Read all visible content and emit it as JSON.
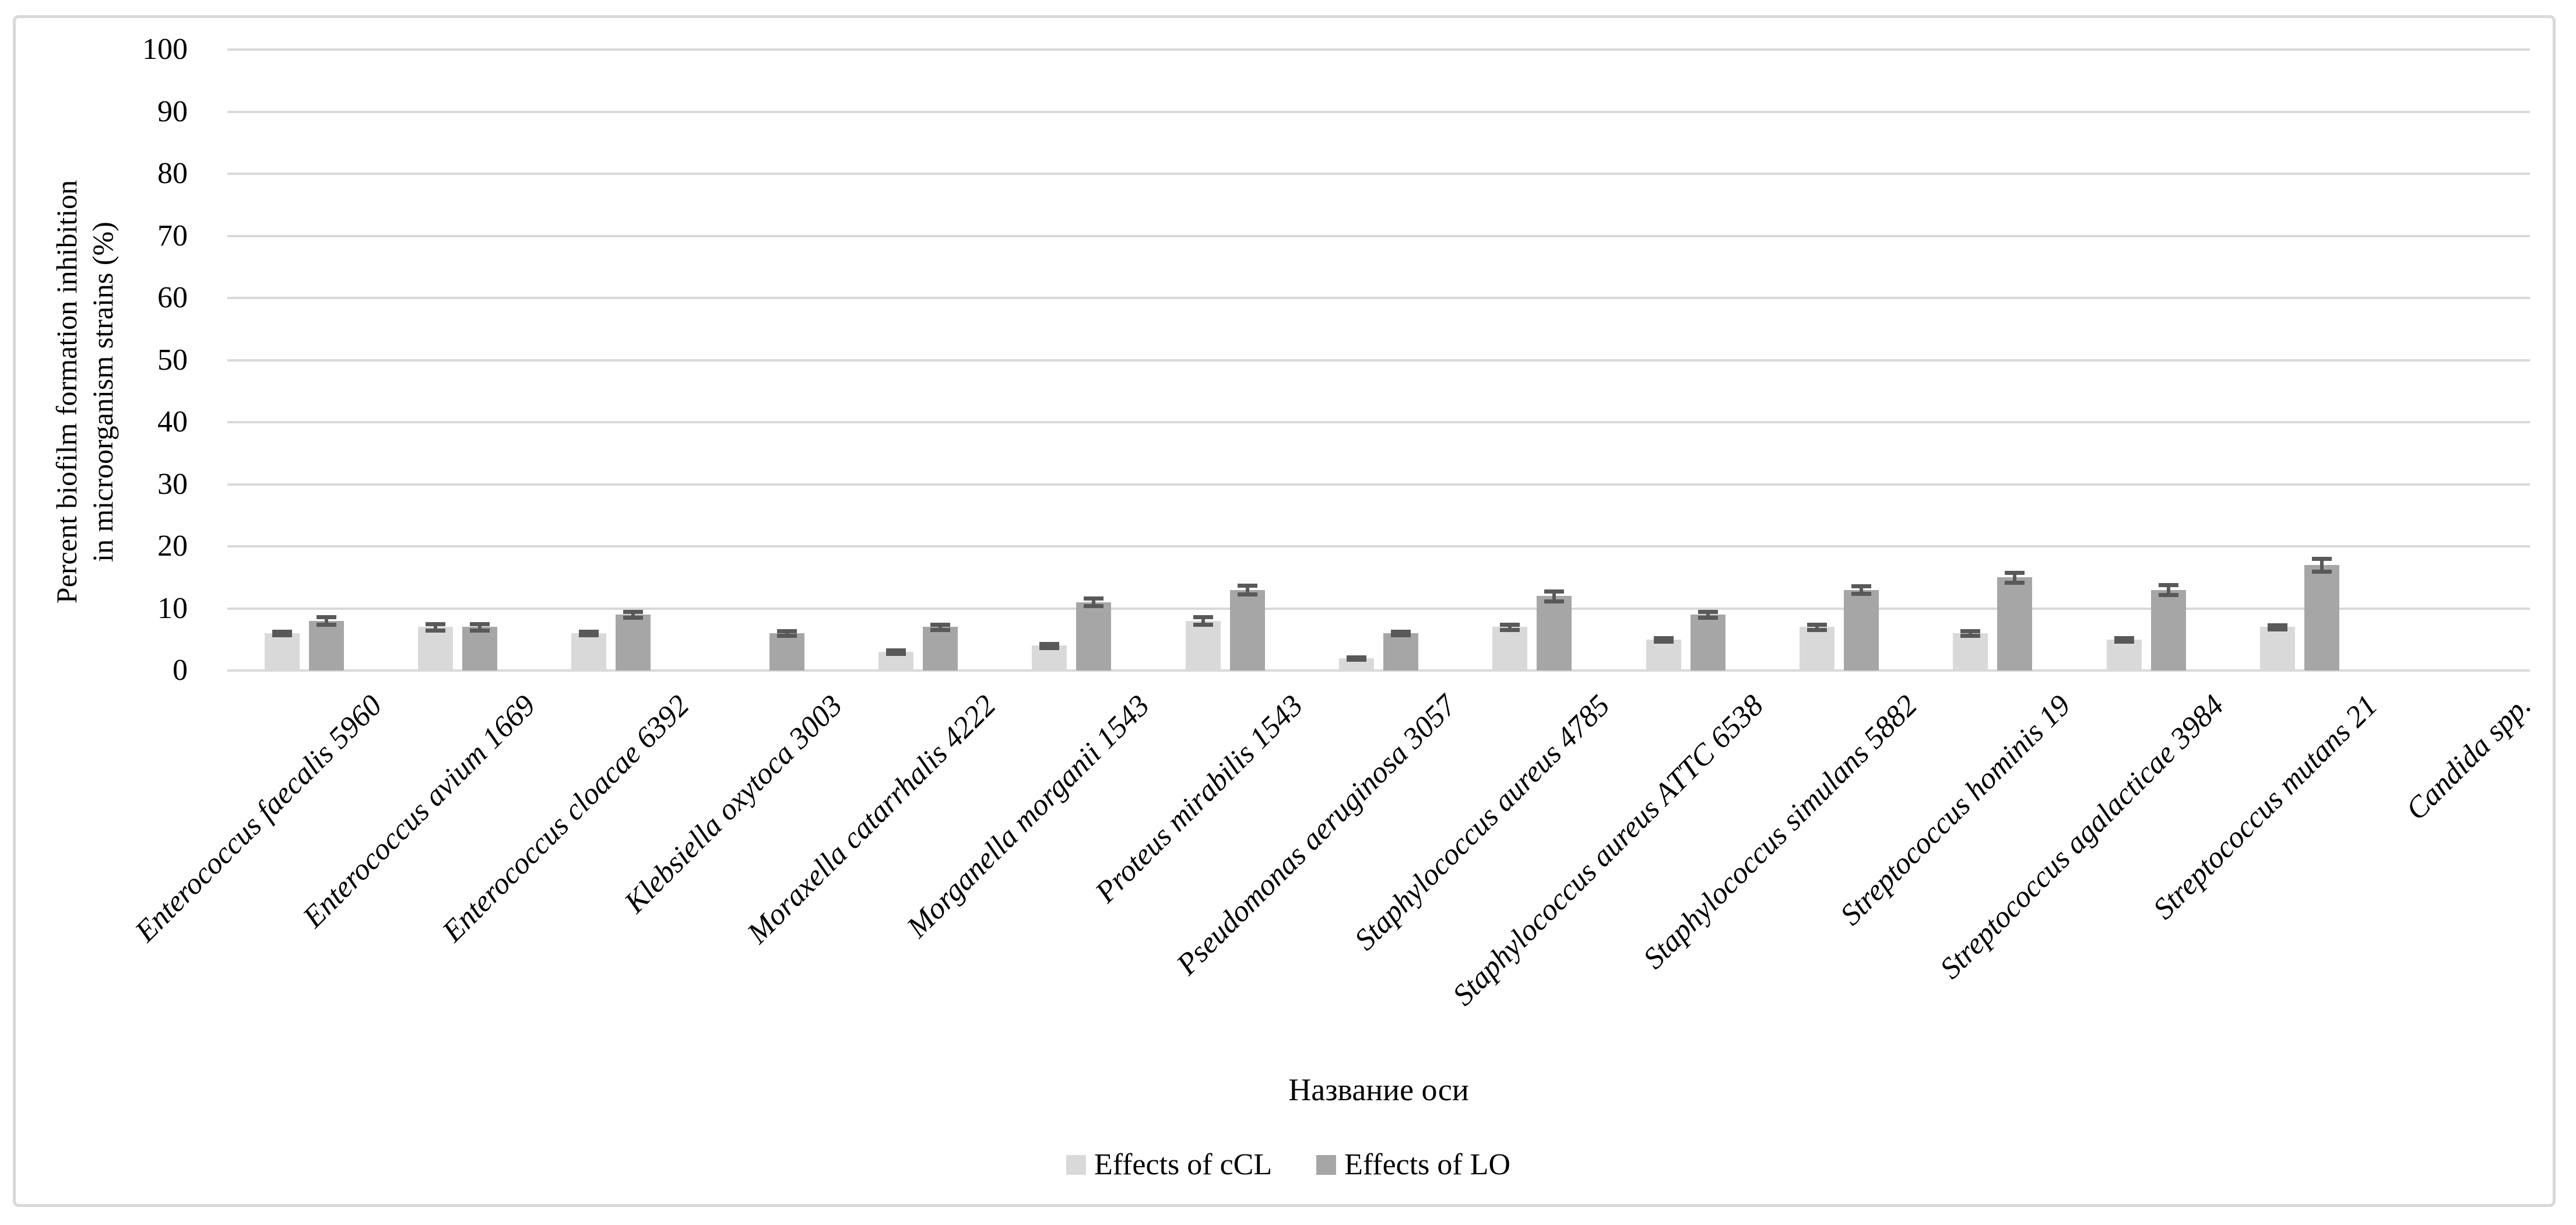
{
  "chart_data": {
    "type": "bar",
    "title": "",
    "y_axis": {
      "label_line1": "Percent biofilm formation inhibition",
      "label_line2": "in microorganism strains (%)",
      "min": 0,
      "max": 100,
      "tick_step": 10,
      "tick_labels": [
        "0",
        "10",
        "20",
        "30",
        "40",
        "50",
        "60",
        "70",
        "80",
        "90",
        "100"
      ]
    },
    "x_axis": {
      "label": "Название оси"
    },
    "categories": [
      "Enterococcus  faecalis 5960",
      "Enterococcus avium 1669",
      "Enterococcus cloacae 6392",
      "Klebsiella oxytoca 3003",
      "Moraxella catarrhalis 4222",
      "Morganella morganii 1543",
      "Proteus mirabilis 1543",
      "Pseudomonas aeruginosa 3057",
      "Staphylococcus aureus 4785",
      "Staphylococcus aureus ATTC 6538",
      "Staphylococcus simulans 5882",
      "Streptococcus hominis 19",
      "Streptococcus agalacticae 3984",
      "Streptococcus mutans 21",
      "Candida spp."
    ],
    "series": [
      {
        "name": "Effects of cCL",
        "color": "#d9d9d9",
        "values": [
          6,
          7,
          6,
          0,
          3,
          4,
          8,
          2,
          7,
          5,
          7,
          6,
          5,
          7,
          0
        ],
        "errors": [
          0.3,
          0.5,
          0.3,
          0,
          0.3,
          0.3,
          0.6,
          0.2,
          0.4,
          0.3,
          0.4,
          0.4,
          0.3,
          0.3,
          0
        ]
      },
      {
        "name": "Effects of LO",
        "color": "#a6a6a6",
        "values": [
          8,
          7,
          9,
          6,
          7,
          11,
          13,
          6,
          12,
          9,
          13,
          15,
          13,
          17,
          0
        ],
        "errors": [
          0.6,
          0.5,
          0.5,
          0.4,
          0.4,
          0.6,
          0.7,
          0.3,
          0.8,
          0.5,
          0.6,
          0.8,
          0.8,
          1.0,
          0
        ]
      }
    ],
    "error_bar_color": "#595959",
    "gridline_color": "#d9d9d9",
    "border_color": "#d9d9d9",
    "background": "#ffffff",
    "grid": true,
    "legend_position": "bottom-center"
  }
}
